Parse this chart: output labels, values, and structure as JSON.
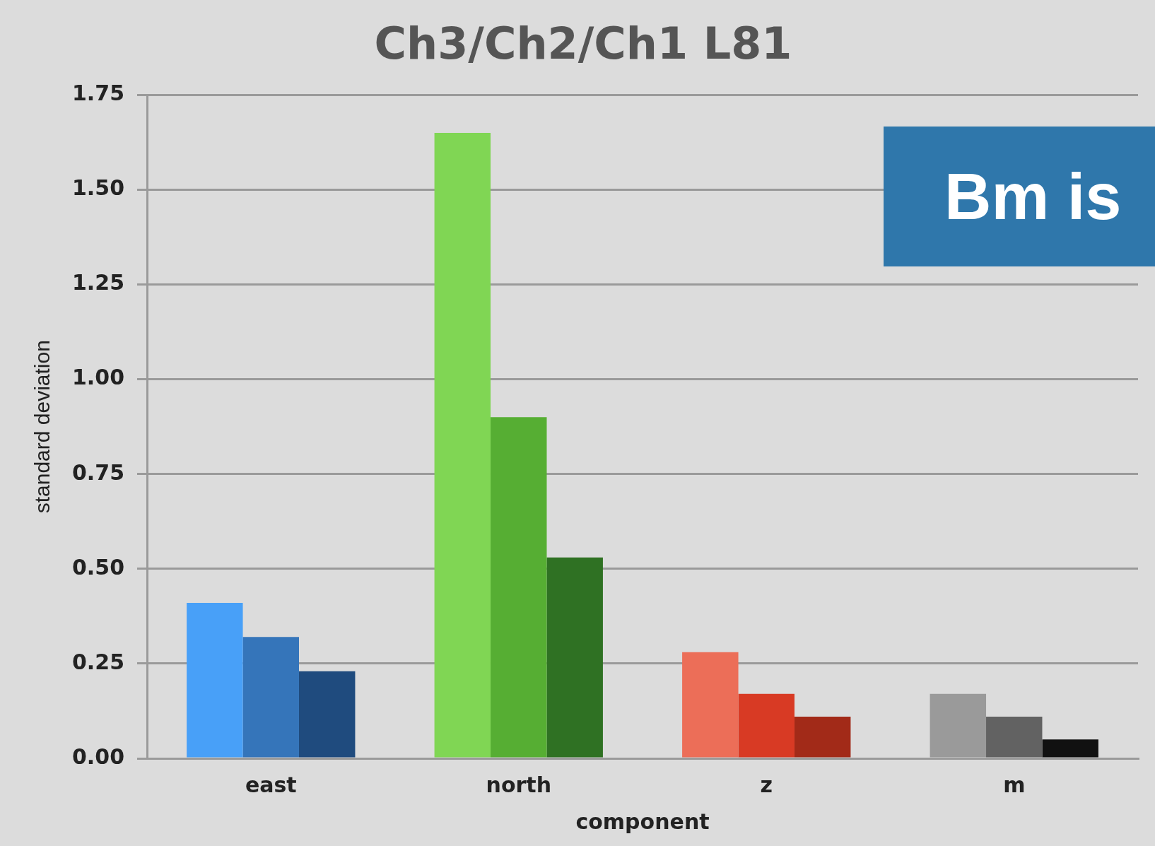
{
  "chart_data": {
    "type": "bar",
    "title": "Ch3/Ch2/Ch1 L81",
    "xlabel": "component",
    "ylabel": "standard deviation",
    "categories": [
      "east",
      "north",
      "z",
      "m"
    ],
    "series": [
      {
        "colors": [
          "#48a0f8",
          "#80d654",
          "#ec6e58",
          "#9a9a9a"
        ],
        "values": [
          0.41,
          1.65,
          0.28,
          0.17
        ]
      },
      {
        "colors": [
          "#3575ba",
          "#56ae33",
          "#d83a24",
          "#626262"
        ],
        "values": [
          0.32,
          0.9,
          0.17,
          0.11
        ]
      },
      {
        "colors": [
          "#1f4b7e",
          "#2f7123",
          "#a22a18",
          "#111111"
        ],
        "values": [
          0.23,
          0.53,
          0.11,
          0.05
        ]
      }
    ],
    "ylim": [
      0,
      1.75
    ],
    "yticks": [
      {
        "value": 0,
        "label": "0.00"
      },
      {
        "value": 0.25,
        "label": "0.25"
      },
      {
        "value": 0.5,
        "label": "0.50"
      },
      {
        "value": 0.75,
        "label": "0.75"
      },
      {
        "value": 1,
        "label": "1.00"
      },
      {
        "value": 1.25,
        "label": "1.25"
      },
      {
        "value": 1.5,
        "label": "1.50"
      },
      {
        "value": 1.75,
        "label": "1.75"
      }
    ],
    "grid": "y",
    "legend": false,
    "annotations": [
      "Bm is"
    ]
  }
}
